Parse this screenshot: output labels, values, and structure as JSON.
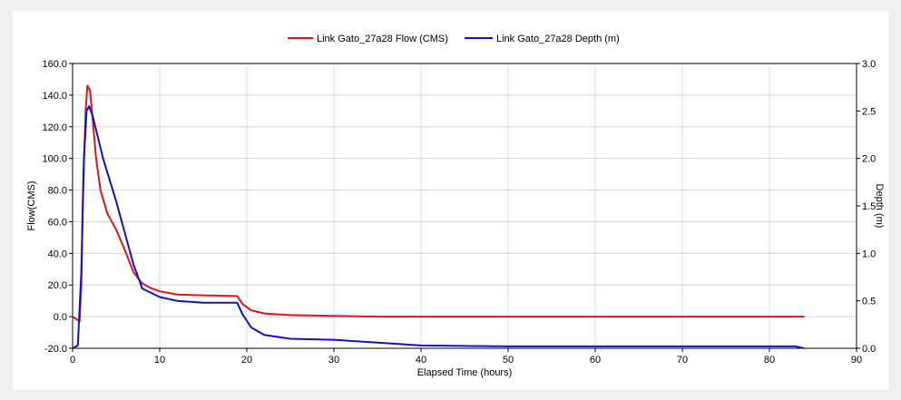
{
  "chart_data": {
    "type": "line",
    "title": "",
    "xlabel": "Elapsed Time (hours)",
    "ylabel_left": "Flow(CMS)",
    "ylabel_right": "Depth (m)",
    "xlim": [
      0,
      90
    ],
    "ylim_left": [
      -20,
      160
    ],
    "ylim_right": [
      0,
      3
    ],
    "x_ticks": [
      "0",
      "10",
      "20",
      "30",
      "40",
      "50",
      "60",
      "70",
      "80",
      "90"
    ],
    "y_left_ticks": [
      "-20.0",
      "0.0",
      "20.0",
      "40.0",
      "60.0",
      "80.0",
      "100.0",
      "120.0",
      "140.0",
      "160.0"
    ],
    "y_right_ticks": [
      "0.0",
      "0.5",
      "1.0",
      "1.5",
      "2.0",
      "2.5",
      "3.0"
    ],
    "grid": true,
    "legend_position": "top-center",
    "series": [
      {
        "name": "Link Gato_27a28 Flow (CMS)",
        "axis": "left",
        "color": "#e8111a",
        "x": [
          0,
          0.8,
          1.0,
          1.2,
          1.5,
          1.7,
          2.0,
          2.3,
          2.7,
          3.2,
          4.0,
          5.0,
          6.0,
          7.0,
          8.0,
          9.0,
          10.0,
          11.0,
          12.0,
          15.0,
          18.9,
          19.5,
          20.5,
          22.0,
          25.0,
          35.0,
          50.0,
          84.0
        ],
        "y": [
          0,
          -3,
          20,
          80,
          130,
          146,
          143,
          125,
          100,
          80,
          65,
          55,
          42,
          28,
          21,
          18,
          16,
          15,
          14,
          13.5,
          13,
          8,
          4,
          2,
          1,
          0,
          0,
          0
        ]
      },
      {
        "name": "Link Gato_27a28 Depth (m)",
        "axis": "right",
        "color": "#1010d0",
        "x": [
          0,
          0.6,
          1.0,
          1.3,
          1.6,
          1.9,
          2.3,
          2.7,
          3.5,
          5.0,
          7.0,
          8.0,
          10.0,
          12.0,
          15.0,
          18.9,
          19.5,
          20.5,
          22.0,
          25.0,
          30.0,
          35.0,
          40.0,
          50.0,
          70.0,
          83.0,
          84.0
        ],
        "y": [
          0,
          0.03,
          0.8,
          2.0,
          2.5,
          2.55,
          2.45,
          2.3,
          2.0,
          1.55,
          0.88,
          0.63,
          0.54,
          0.5,
          0.48,
          0.48,
          0.36,
          0.22,
          0.14,
          0.1,
          0.09,
          0.06,
          0.03,
          0.02,
          0.02,
          0.02,
          0.0
        ]
      }
    ]
  }
}
